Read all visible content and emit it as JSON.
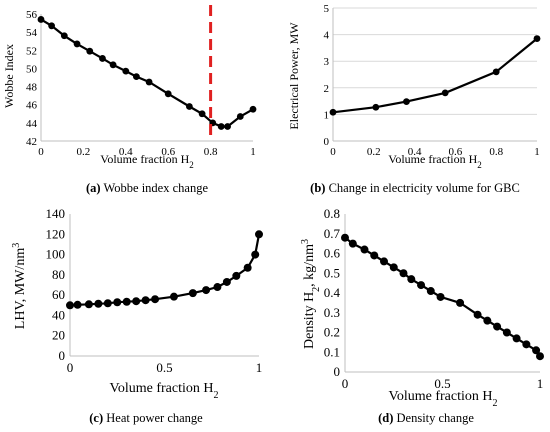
{
  "chart_data": [
    {
      "panel": "a",
      "type": "line",
      "caption_letter": "(a)",
      "caption_text": " Wobbe index change",
      "xlabel": "Volume fraction H",
      "xlabel_sub": "2",
      "ylabel": "Wobbe Index",
      "xlim": [
        0,
        1
      ],
      "ylim": [
        42,
        56
      ],
      "xticks": [
        0,
        0.2,
        0.4,
        0.6,
        0.8,
        1
      ],
      "xtick_labels": [
        "0",
        "0.2",
        "0.4",
        "0.6",
        "0.8",
        "1"
      ],
      "yticks": [
        42,
        44,
        46,
        48,
        50,
        52,
        54,
        56
      ],
      "ytick_labels": [
        "42",
        "44",
        "46",
        "48",
        "50",
        "52",
        "54",
        "56"
      ],
      "grid": false,
      "vline_x": 0.8,
      "vline_color": "#e02020",
      "series": [
        {
          "x": [
            0,
            0.05,
            0.11,
            0.17,
            0.23,
            0.29,
            0.34,
            0.4,
            0.45,
            0.51,
            0.6,
            0.7,
            0.76,
            0.81,
            0.85,
            0.88,
            0.94,
            1
          ],
          "y": [
            55.4,
            54.7,
            53.6,
            52.7,
            51.9,
            51.1,
            50.4,
            49.7,
            49.1,
            48.5,
            47.2,
            45.8,
            45.0,
            44.0,
            43.6,
            43.6,
            44.7,
            45.5
          ]
        }
      ]
    },
    {
      "panel": "b",
      "type": "line",
      "caption_letter": "(b)",
      "caption_text": " Change in electricity volume for GBC",
      "xlabel": "Volume fraction H",
      "xlabel_sub": "2",
      "ylabel": "Electrical Power, MW",
      "xlim": [
        0,
        1
      ],
      "ylim": [
        0,
        5
      ],
      "xticks": [
        0,
        0.2,
        0.4,
        0.6,
        0.8,
        1
      ],
      "xtick_labels": [
        "0",
        "0.2",
        "0.4",
        "0.6",
        "0.8",
        "1"
      ],
      "yticks": [
        0,
        1,
        2,
        3,
        4,
        5
      ],
      "ytick_labels": [
        "0",
        "1",
        "2",
        "3",
        "4",
        "5"
      ],
      "grid": true,
      "series": [
        {
          "x": [
            0,
            0.21,
            0.36,
            0.55,
            0.8,
            1
          ],
          "y": [
            1.08,
            1.27,
            1.48,
            1.81,
            2.6,
            3.85
          ]
        }
      ]
    },
    {
      "panel": "c",
      "type": "line",
      "caption_letter": "(c)",
      "caption_text": " Heat power change",
      "xlabel": "Volume fraction H",
      "xlabel_sub": "2",
      "ylabel": "LHV, MW/nm",
      "ylabel_sup": "3",
      "xlim": [
        0,
        1
      ],
      "ylim": [
        0,
        140
      ],
      "xticks": [
        0,
        0.5,
        1
      ],
      "xtick_labels": [
        "0",
        "0.5",
        "1"
      ],
      "yticks": [
        0,
        20,
        40,
        60,
        80,
        100,
        120,
        140
      ],
      "ytick_labels": [
        "0",
        "20",
        "40",
        "60",
        "80",
        "100",
        "120",
        "140"
      ],
      "grid": false,
      "series": [
        {
          "x": [
            0,
            0.04,
            0.1,
            0.15,
            0.2,
            0.25,
            0.3,
            0.35,
            0.4,
            0.45,
            0.55,
            0.65,
            0.72,
            0.78,
            0.83,
            0.88,
            0.94,
            0.98,
            1
          ],
          "y": [
            50,
            50.5,
            51,
            51.5,
            52,
            53,
            53.5,
            54,
            55,
            56,
            58.5,
            62,
            65,
            68,
            73,
            79,
            87,
            100,
            120
          ]
        }
      ]
    },
    {
      "panel": "d",
      "type": "line",
      "caption_letter": "(d)",
      "caption_text": " Density change",
      "xlabel": "Volume fraction H",
      "xlabel_sub": "2",
      "ylabel": "Density H",
      "ylabel_sub": "2",
      "ylabel_tail": ", kg/nm",
      "ylabel_sup": "3",
      "xlim": [
        0,
        1
      ],
      "ylim": [
        0,
        0.8
      ],
      "xticks": [
        0,
        0.5,
        1
      ],
      "xtick_labels": [
        "0",
        "0.5",
        "1"
      ],
      "yticks": [
        0,
        0.1,
        0.2,
        0.3,
        0.4,
        0.5,
        0.6,
        0.7,
        0.8
      ],
      "ytick_labels": [
        "0",
        "0.1",
        "0.2",
        "0.3",
        "0.4",
        "0.5",
        "0.6",
        "0.7",
        "0.8"
      ],
      "grid": false,
      "series": [
        {
          "x": [
            0,
            0.04,
            0.1,
            0.15,
            0.2,
            0.25,
            0.3,
            0.34,
            0.39,
            0.44,
            0.49,
            0.59,
            0.68,
            0.73,
            0.78,
            0.83,
            0.88,
            0.93,
            0.98,
            1
          ],
          "y": [
            0.68,
            0.65,
            0.62,
            0.59,
            0.56,
            0.53,
            0.5,
            0.47,
            0.44,
            0.41,
            0.38,
            0.35,
            0.29,
            0.26,
            0.23,
            0.2,
            0.17,
            0.14,
            0.11,
            0.08
          ]
        }
      ]
    }
  ]
}
